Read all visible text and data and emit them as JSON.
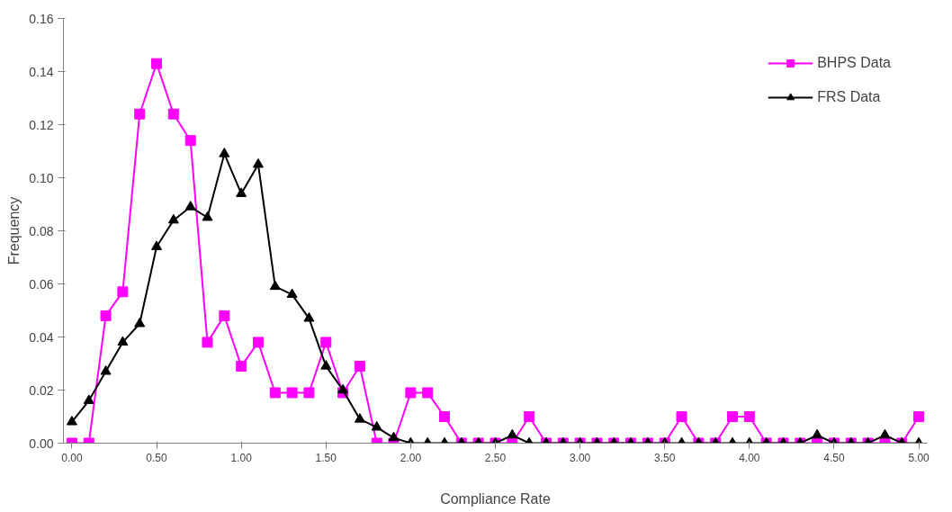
{
  "chart_data": {
    "type": "line",
    "xlabel": "Compliance Rate",
    "ylabel": "Frequency",
    "x": [
      0.0,
      0.1,
      0.2,
      0.3,
      0.4,
      0.5,
      0.6,
      0.7,
      0.8,
      0.9,
      1.0,
      1.1,
      1.2,
      1.3,
      1.4,
      1.5,
      1.6,
      1.7,
      1.8,
      1.9,
      2.0,
      2.1,
      2.2,
      2.3,
      2.4,
      2.5,
      2.6,
      2.7,
      2.8,
      2.9,
      3.0,
      3.1,
      3.2,
      3.3,
      3.4,
      3.5,
      3.6,
      3.7,
      3.8,
      3.9,
      4.0,
      4.1,
      4.2,
      4.3,
      4.4,
      4.5,
      4.6,
      4.7,
      4.8,
      4.9,
      5.0
    ],
    "series": [
      {
        "name": "BHPS Data",
        "color": "#ff00ff",
        "marker": "square",
        "values": [
          0,
          0,
          0.048,
          0.057,
          0.124,
          0.143,
          0.124,
          0.114,
          0.038,
          0.048,
          0.029,
          0.038,
          0.019,
          0.019,
          0.019,
          0.038,
          0.019,
          0.029,
          0,
          0,
          0.019,
          0.019,
          0.01,
          0,
          0,
          0,
          0,
          0.01,
          0,
          0,
          0,
          0,
          0,
          0,
          0,
          0,
          0.01,
          0,
          0,
          0.01,
          0.01,
          0,
          0,
          0,
          0,
          0,
          0,
          0,
          0,
          0,
          0.01
        ]
      },
      {
        "name": "FRS Data",
        "color": "#000000",
        "marker": "triangle",
        "values": [
          0.008,
          0.016,
          0.027,
          0.038,
          0.045,
          0.074,
          0.084,
          0.089,
          0.085,
          0.109,
          0.094,
          0.105,
          0.059,
          0.056,
          0.047,
          0.029,
          0.02,
          0.009,
          0.006,
          0.002,
          0,
          0,
          0,
          0,
          0,
          0,
          0.003,
          0,
          0,
          0,
          0,
          0,
          0,
          0,
          0,
          0,
          0,
          0,
          0,
          0,
          0,
          0,
          0,
          0,
          0.003,
          0,
          0,
          0,
          0.003,
          0,
          0
        ]
      }
    ],
    "xlim": [
      -0.05,
      5.05
    ],
    "xticks": [
      {
        "value": 0,
        "label": "0.00"
      },
      {
        "value": 0.5,
        "label": "0.50"
      },
      {
        "value": 1,
        "label": "1.00"
      },
      {
        "value": 1.5,
        "label": "1.50"
      },
      {
        "value": 2,
        "label": "2.00"
      },
      {
        "value": 2.5,
        "label": "2.50"
      },
      {
        "value": 3,
        "label": "3.00"
      },
      {
        "value": 3.5,
        "label": "3.50"
      },
      {
        "value": 4,
        "label": "4.00"
      },
      {
        "value": 4.5,
        "label": "4.50"
      },
      {
        "value": 5,
        "label": "5.00"
      }
    ],
    "ylim": [
      0,
      0.16
    ],
    "yticks": [
      {
        "value": 0,
        "label": "0.00"
      },
      {
        "value": 0.02,
        "label": "0.02"
      },
      {
        "value": 0.04,
        "label": "0.04"
      },
      {
        "value": 0.06,
        "label": "0.06"
      },
      {
        "value": 0.08,
        "label": "0.08"
      },
      {
        "value": 0.1,
        "label": "0.10"
      },
      {
        "value": 0.12,
        "label": "0.12"
      },
      {
        "value": 0.14,
        "label": "0.14"
      },
      {
        "value": 0.16,
        "label": "0.16"
      }
    ],
    "grid": false,
    "legend": "top right",
    "line_style": "solid"
  }
}
